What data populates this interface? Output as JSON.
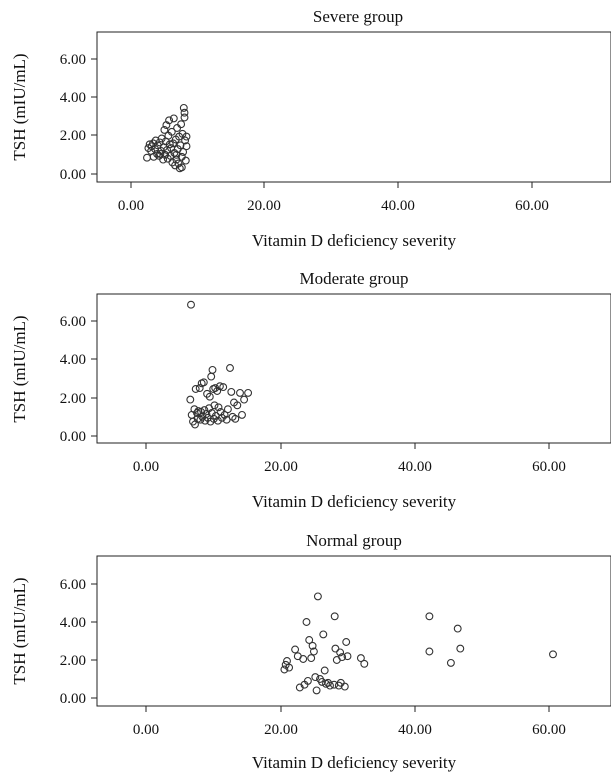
{
  "chart_data": [
    {
      "type": "scatter",
      "title": "Severe group",
      "xlabel": "Vitamin D deficiency severity",
      "ylabel": "TSH (mIU/mL)",
      "xlim": [
        -8.5,
        71.5
      ],
      "ylim": [
        -0.4,
        7.4
      ],
      "xticks": [
        "0.00",
        "20.00",
        "40.00",
        "60.00"
      ],
      "xtick_values": [
        0,
        20,
        40,
        60
      ],
      "yticks": [
        "0.00",
        "2.00",
        "4.00",
        "6.00"
      ],
      "ytick_values": [
        0,
        2,
        4,
        6
      ],
      "grid": false,
      "points": [
        [
          2.4,
          0.85
        ],
        [
          2.6,
          1.35
        ],
        [
          2.8,
          1.55
        ],
        [
          3.0,
          1.2
        ],
        [
          3.1,
          1.45
        ],
        [
          3.3,
          1.6
        ],
        [
          3.4,
          0.9
        ],
        [
          3.6,
          1.3
        ],
        [
          3.7,
          1.75
        ],
        [
          3.9,
          1.05
        ],
        [
          4.0,
          1.5
        ],
        [
          4.2,
          0.95
        ],
        [
          4.3,
          1.65
        ],
        [
          4.5,
          1.2
        ],
        [
          4.6,
          1.85
        ],
        [
          4.8,
          0.75
        ],
        [
          4.9,
          1.4
        ],
        [
          5.0,
          2.3
        ],
        [
          5.1,
          1.0
        ],
        [
          5.2,
          1.7
        ],
        [
          5.3,
          2.55
        ],
        [
          5.4,
          1.25
        ],
        [
          5.5,
          0.8
        ],
        [
          5.6,
          2.0
        ],
        [
          5.7,
          2.8
        ],
        [
          5.8,
          1.55
        ],
        [
          5.9,
          0.95
        ],
        [
          6.0,
          1.35
        ],
        [
          6.1,
          2.2
        ],
        [
          6.2,
          0.6
        ],
        [
          6.3,
          1.6
        ],
        [
          6.4,
          2.9
        ],
        [
          6.5,
          1.1
        ],
        [
          6.6,
          0.45
        ],
        [
          6.7,
          1.8
        ],
        [
          6.8,
          0.75
        ],
        [
          6.9,
          2.4
        ],
        [
          7.0,
          1.3
        ],
        [
          7.1,
          0.55
        ],
        [
          7.2,
          1.95
        ],
        [
          7.3,
          0.3
        ],
        [
          7.4,
          1.5
        ],
        [
          7.5,
          2.6
        ],
        [
          7.6,
          0.9
        ],
        [
          7.7,
          2.1
        ],
        [
          7.8,
          1.15
        ],
        [
          7.9,
          3.45
        ],
        [
          8.0,
          3.2
        ],
        [
          8.0,
          2.95
        ],
        [
          8.1,
          1.75
        ],
        [
          8.2,
          0.7
        ],
        [
          8.3,
          1.95
        ],
        [
          8.3,
          1.45
        ],
        [
          4.4,
          1.05
        ],
        [
          6.8,
          1.0
        ],
        [
          7.6,
          0.35
        ]
      ]
    },
    {
      "type": "scatter",
      "title": "Moderate group",
      "xlabel": "Vitamin D deficiency severity",
      "ylabel": "TSH (mIU/mL)",
      "xlim": [
        -8.5,
        71.5
      ],
      "ylim": [
        -0.4,
        7.4
      ],
      "xticks": [
        "0.00",
        "20.00",
        "40.00",
        "60.00"
      ],
      "xtick_values": [
        0,
        20,
        40,
        60
      ],
      "yticks": [
        "0.00",
        "2.00",
        "4.00",
        "6.00"
      ],
      "ytick_values": [
        0,
        2,
        4,
        6
      ],
      "grid": false,
      "points": [
        [
          6.7,
          6.85
        ],
        [
          6.6,
          1.9
        ],
        [
          6.8,
          1.1
        ],
        [
          7.0,
          0.75
        ],
        [
          7.2,
          1.4
        ],
        [
          7.3,
          0.6
        ],
        [
          7.4,
          2.45
        ],
        [
          7.6,
          1.2
        ],
        [
          7.7,
          0.9
        ],
        [
          7.8,
          1.3
        ],
        [
          8.0,
          2.5
        ],
        [
          8.1,
          0.85
        ],
        [
          8.2,
          1.25
        ],
        [
          8.3,
          2.75
        ],
        [
          8.4,
          1.0
        ],
        [
          8.6,
          2.8
        ],
        [
          8.7,
          1.35
        ],
        [
          8.8,
          0.8
        ],
        [
          9.0,
          1.15
        ],
        [
          9.1,
          2.2
        ],
        [
          9.2,
          0.95
        ],
        [
          9.4,
          1.45
        ],
        [
          9.5,
          2.05
        ],
        [
          9.6,
          0.75
        ],
        [
          9.7,
          3.1
        ],
        [
          9.8,
          1.2
        ],
        [
          9.9,
          3.45
        ],
        [
          10.0,
          2.45
        ],
        [
          10.1,
          0.9
        ],
        [
          10.2,
          1.6
        ],
        [
          10.3,
          2.5
        ],
        [
          10.4,
          1.05
        ],
        [
          10.6,
          2.35
        ],
        [
          10.7,
          0.8
        ],
        [
          10.8,
          1.5
        ],
        [
          11.0,
          2.6
        ],
        [
          11.1,
          1.25
        ],
        [
          11.3,
          0.95
        ],
        [
          11.5,
          2.55
        ],
        [
          11.7,
          1.1
        ],
        [
          12.0,
          0.85
        ],
        [
          12.2,
          1.4
        ],
        [
          12.5,
          3.55
        ],
        [
          12.7,
          2.3
        ],
        [
          12.9,
          1.0
        ],
        [
          13.1,
          1.75
        ],
        [
          13.3,
          0.9
        ],
        [
          13.6,
          1.6
        ],
        [
          14.0,
          2.25
        ],
        [
          14.3,
          1.1
        ],
        [
          14.6,
          1.9
        ],
        [
          15.2,
          2.25
        ]
      ]
    },
    {
      "type": "scatter",
      "title": "Normal group",
      "xlabel": "Vitamin D deficiency severity",
      "ylabel": "TSH (mIU/mL)",
      "xlim": [
        -8.5,
        71.5
      ],
      "ylim": [
        -0.4,
        7.4
      ],
      "xticks": [
        "0.00",
        "20.00",
        "40.00",
        "60.00"
      ],
      "xtick_values": [
        0,
        20,
        40,
        60
      ],
      "yticks": [
        "0.00",
        "2.00",
        "4.00",
        "6.00"
      ],
      "ytick_values": [
        0,
        2,
        4,
        6
      ],
      "grid": false,
      "points": [
        [
          20.6,
          1.5
        ],
        [
          20.8,
          1.75
        ],
        [
          21.0,
          1.95
        ],
        [
          21.3,
          1.6
        ],
        [
          22.2,
          2.55
        ],
        [
          22.6,
          2.2
        ],
        [
          22.9,
          0.55
        ],
        [
          23.4,
          2.05
        ],
        [
          23.6,
          0.7
        ],
        [
          23.9,
          4.0
        ],
        [
          24.1,
          0.9
        ],
        [
          24.3,
          3.05
        ],
        [
          24.6,
          2.1
        ],
        [
          24.8,
          2.75
        ],
        [
          25.0,
          2.45
        ],
        [
          25.2,
          1.1
        ],
        [
          25.4,
          0.4
        ],
        [
          25.6,
          5.35
        ],
        [
          25.9,
          1.0
        ],
        [
          26.2,
          0.85
        ],
        [
          26.4,
          3.35
        ],
        [
          26.6,
          1.45
        ],
        [
          26.8,
          0.75
        ],
        [
          27.1,
          0.8
        ],
        [
          27.4,
          0.65
        ],
        [
          28.0,
          0.7
        ],
        [
          28.1,
          4.3
        ],
        [
          28.2,
          2.6
        ],
        [
          28.4,
          2.0
        ],
        [
          28.7,
          0.65
        ],
        [
          28.9,
          2.4
        ],
        [
          29.0,
          0.8
        ],
        [
          29.2,
          2.15
        ],
        [
          29.6,
          0.6
        ],
        [
          29.8,
          2.95
        ],
        [
          30.0,
          2.2
        ],
        [
          32.0,
          2.1
        ],
        [
          32.5,
          1.8
        ],
        [
          42.2,
          4.3
        ],
        [
          42.2,
          2.45
        ],
        [
          45.4,
          1.85
        ],
        [
          46.4,
          3.65
        ],
        [
          46.8,
          2.6
        ],
        [
          60.6,
          2.3
        ]
      ]
    }
  ]
}
